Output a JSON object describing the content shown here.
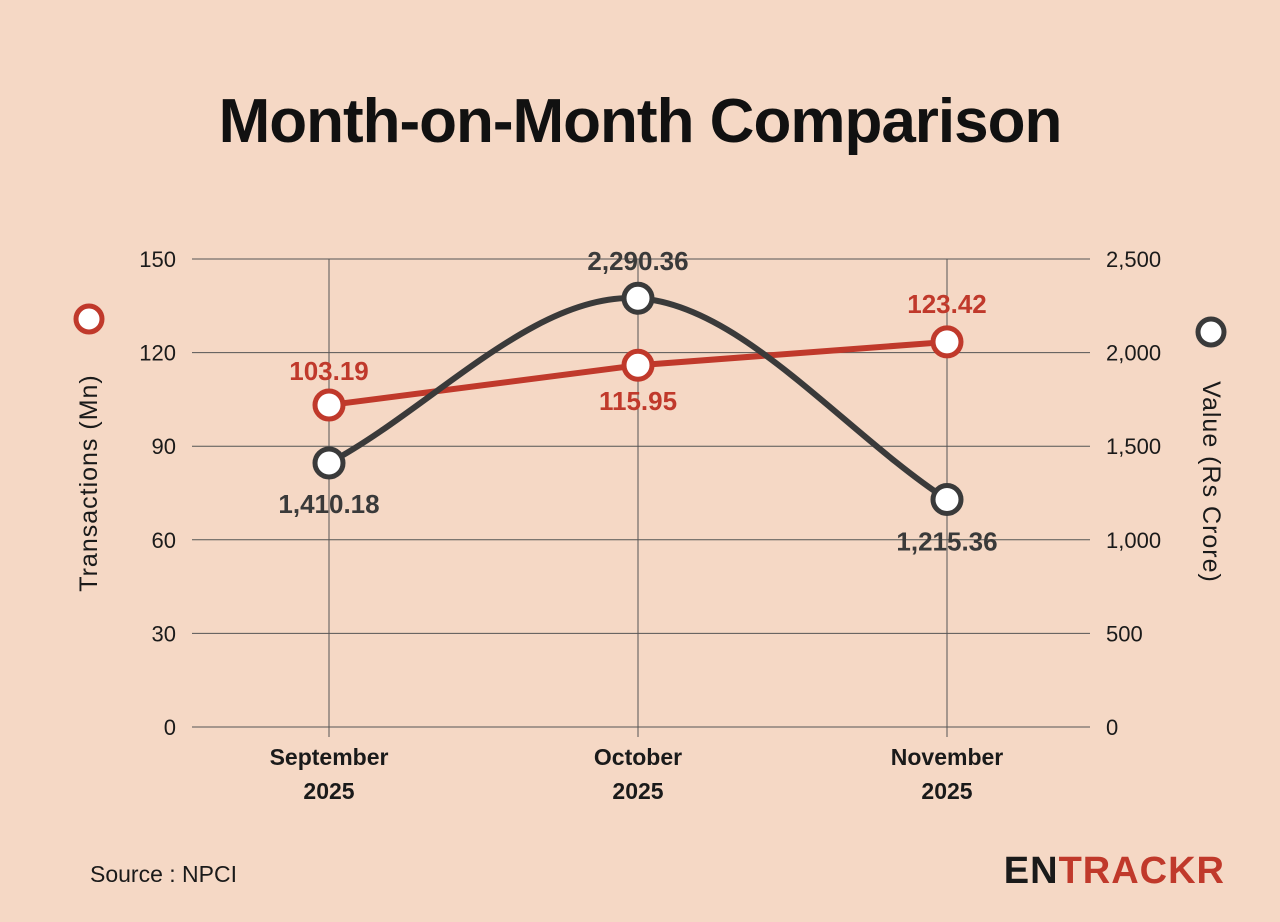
{
  "title": "Month-on-Month Comparison",
  "source": "Source : NPCI",
  "logo": {
    "part1": "EN",
    "part2": "TRACKR"
  },
  "colors": {
    "background": "#f5d8c5",
    "transactions": "#c0392b",
    "value": "#3a3a3a",
    "grid": "#555555"
  },
  "chart_data": {
    "type": "line",
    "title": "Month-on-Month Comparison",
    "categories": [
      [
        "September",
        "2025"
      ],
      [
        "October",
        "2025"
      ],
      [
        "November",
        "2025"
      ]
    ],
    "left_axis": {
      "label": "Transactions (Mn)",
      "ylim": [
        0,
        150
      ],
      "ticks": [
        "0",
        "30",
        "60",
        "90",
        "120",
        "150"
      ]
    },
    "right_axis": {
      "label": "Value (Rs Crore)",
      "ylim": [
        0,
        2500
      ],
      "ticks": [
        "0",
        "500",
        "1,000",
        "1,500",
        "2,000",
        "2,500"
      ]
    },
    "series": [
      {
        "name": "Transactions (Mn)",
        "axis": "left",
        "values": [
          103.19,
          115.95,
          123.42
        ],
        "labels": [
          "103.19",
          "115.95",
          "123.42"
        ]
      },
      {
        "name": "Value (Rs Crore)",
        "axis": "right",
        "values": [
          1410.18,
          2290.36,
          1215.36
        ],
        "labels": [
          "1,410.18",
          "2,290.36",
          "1,215.36"
        ]
      }
    ],
    "grid": true
  }
}
